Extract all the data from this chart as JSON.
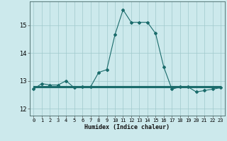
{
  "xlabel": "Humidex (Indice chaleur)",
  "ylabel": "",
  "xlim": [
    -0.5,
    23.5
  ],
  "ylim": [
    11.75,
    15.85
  ],
  "yticks": [
    12,
    13,
    14,
    15
  ],
  "xticks": [
    0,
    1,
    2,
    3,
    4,
    5,
    6,
    7,
    8,
    9,
    10,
    11,
    12,
    13,
    14,
    15,
    16,
    17,
    18,
    19,
    20,
    21,
    22,
    23
  ],
  "bg_color": "#cce9ec",
  "grid_color": "#a0c8cc",
  "line_color": "#1a6b6b",
  "x": [
    0,
    1,
    2,
    3,
    4,
    5,
    6,
    7,
    8,
    9,
    10,
    11,
    12,
    13,
    14,
    15,
    16,
    17,
    18,
    19,
    20,
    21,
    22,
    23
  ],
  "y_main": [
    12.7,
    12.9,
    12.85,
    12.85,
    13.0,
    12.75,
    12.78,
    12.78,
    13.3,
    13.4,
    14.65,
    15.55,
    15.1,
    15.1,
    15.1,
    14.7,
    13.5,
    12.7,
    12.78,
    12.78,
    12.6,
    12.65,
    12.7,
    12.75
  ],
  "y_flat1": [
    12.82,
    12.82,
    12.82,
    12.82,
    12.82,
    12.82,
    12.82,
    12.82,
    12.82,
    12.82,
    12.82,
    12.82,
    12.82,
    12.82,
    12.82,
    12.82,
    12.82,
    12.82,
    12.82,
    12.82,
    12.82,
    12.82,
    12.82,
    12.82
  ],
  "y_flat2": [
    12.78,
    12.78,
    12.78,
    12.78,
    12.78,
    12.78,
    12.78,
    12.78,
    12.78,
    12.78,
    12.78,
    12.78,
    12.78,
    12.78,
    12.78,
    12.78,
    12.78,
    12.78,
    12.78,
    12.78,
    12.78,
    12.78,
    12.78,
    12.78
  ],
  "y_flat3": [
    12.75,
    12.75,
    12.75,
    12.75,
    12.75,
    12.75,
    12.75,
    12.75,
    12.75,
    12.75,
    12.75,
    12.75,
    12.75,
    12.75,
    12.75,
    12.75,
    12.75,
    12.75,
    12.75,
    12.75,
    12.75,
    12.75,
    12.75,
    12.75
  ]
}
